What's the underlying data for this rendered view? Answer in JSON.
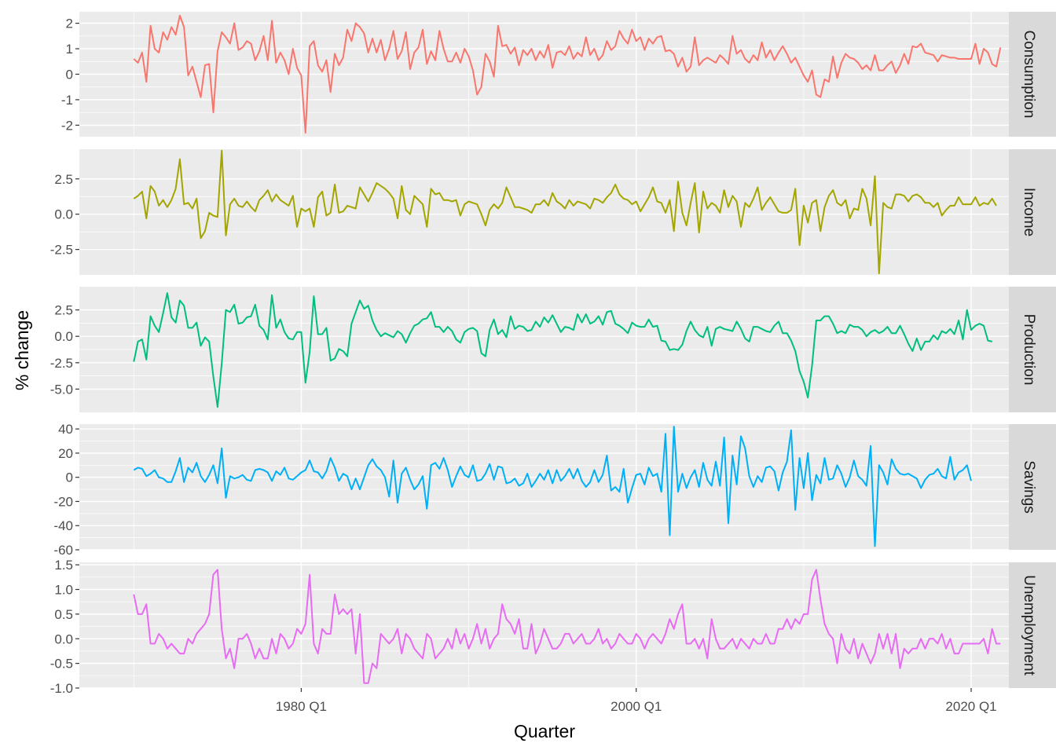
{
  "chart_data": {
    "type": "line",
    "xlabel": "Quarter",
    "ylabel": "% change",
    "x_ticks": [
      {
        "label": "1980 Q1",
        "value": 1980.0
      },
      {
        "label": "2000 Q1",
        "value": 2000.0
      },
      {
        "label": "2020 Q1",
        "value": 2020.0
      }
    ],
    "x_start": 1970.0,
    "x_step": 0.25,
    "xlim": [
      1966.75,
      2022.25
    ],
    "grid": true,
    "facets": [
      {
        "name": "Consumption",
        "color": "#F8766D",
        "ylim": [
          -2.45,
          2.45
        ],
        "ticks": [
          {
            "value": 2,
            "label": "2"
          },
          {
            "value": 1,
            "label": "1"
          },
          {
            "value": 0,
            "label": "0"
          },
          {
            "value": -1,
            "label": "-1"
          },
          {
            "value": -2,
            "label": "-2"
          }
        ],
        "values": [
          0.6,
          0.45,
          0.85,
          -0.3,
          1.9,
          1.0,
          0.85,
          1.65,
          1.35,
          1.85,
          1.55,
          2.3,
          1.85,
          -0.05,
          0.3,
          -0.3,
          -0.9,
          0.35,
          0.4,
          -1.5,
          0.9,
          1.65,
          1.45,
          1.2,
          2.0,
          0.95,
          1.05,
          1.3,
          1.2,
          0.55,
          0.9,
          1.5,
          0.55,
          2.1,
          0.45,
          0.85,
          0.55,
          0.0,
          1.0,
          0.25,
          -0.05,
          -2.3,
          1.1,
          1.3,
          0.35,
          0.1,
          0.55,
          -0.7,
          0.8,
          0.35,
          0.65,
          1.75,
          1.3,
          2.0,
          1.85,
          1.6,
          0.85,
          1.4,
          0.85,
          1.35,
          0.55,
          1.0,
          1.7,
          0.6,
          0.9,
          1.65,
          0.2,
          0.85,
          1.05,
          1.75,
          0.4,
          0.9,
          0.55,
          1.7,
          1.0,
          0.5,
          0.5,
          0.85,
          0.45,
          1.0,
          0.7,
          0.15,
          -0.8,
          -0.5,
          0.8,
          0.5,
          -0.1,
          1.9,
          1.1,
          1.15,
          0.8,
          1.05,
          0.35,
          0.95,
          0.75,
          1.0,
          0.55,
          0.9,
          0.65,
          1.15,
          0.25,
          0.85,
          0.9,
          0.75,
          1.1,
          0.6,
          0.85,
          0.7,
          1.45,
          0.75,
          1.0,
          0.55,
          0.75,
          1.3,
          0.95,
          1.1,
          1.7,
          1.4,
          1.2,
          1.75,
          1.3,
          1.45,
          0.95,
          1.4,
          1.2,
          1.45,
          1.5,
          0.9,
          0.95,
          0.8,
          0.3,
          0.65,
          0.1,
          0.3,
          1.45,
          0.35,
          0.55,
          0.65,
          0.55,
          0.45,
          0.75,
          0.6,
          0.4,
          1.5,
          0.8,
          0.95,
          0.6,
          0.45,
          0.75,
          0.55,
          1.25,
          0.65,
          0.95,
          0.55,
          0.85,
          1.1,
          0.8,
          0.45,
          0.65,
          0.3,
          -0.05,
          -0.3,
          0.15,
          -0.8,
          -0.9,
          -0.2,
          -0.3,
          0.7,
          -0.15,
          0.45,
          0.8,
          0.65,
          0.6,
          0.45,
          0.2,
          0.35,
          0.15,
          0.75,
          0.15,
          0.15,
          0.35,
          0.5,
          0.05,
          0.35,
          0.8,
          0.4,
          1.1,
          1.05,
          1.2,
          0.85,
          0.8,
          0.75,
          0.5,
          0.75,
          0.7,
          0.65,
          0.65,
          0.6,
          0.6,
          0.6,
          0.6,
          1.2,
          0.4,
          1.0,
          0.85,
          0.4,
          0.3,
          1.05
        ]
      },
      {
        "name": "Income",
        "color": "#A3A500",
        "ylim": [
          -4.3,
          4.6
        ],
        "ticks": [
          {
            "value": 2.5,
            "label": "2.5"
          },
          {
            "value": 0,
            "label": "0.0"
          },
          {
            "value": -2.5,
            "label": "-2.5"
          }
        ],
        "values": [
          1.1,
          1.3,
          1.6,
          -0.3,
          2.0,
          1.6,
          0.6,
          1.0,
          0.5,
          1.0,
          1.8,
          3.9,
          0.7,
          0.8,
          0.4,
          1.1,
          -1.7,
          -1.2,
          0.1,
          -0.1,
          -0.2,
          4.5,
          -1.5,
          0.7,
          1.1,
          0.6,
          0.5,
          0.9,
          0.5,
          0.2,
          1.0,
          1.3,
          1.7,
          0.9,
          1.4,
          1.0,
          0.8,
          0.6,
          1.3,
          -0.9,
          0.4,
          0.2,
          0.4,
          -0.9,
          1.2,
          1.6,
          -0.1,
          0.1,
          2.1,
          0.1,
          0.2,
          0.6,
          0.5,
          0.4,
          1.9,
          1.4,
          0.9,
          1.5,
          2.2,
          2.0,
          1.8,
          1.5,
          1.1,
          -0.3,
          2.0,
          0.3,
          0.0,
          1.3,
          1.0,
          0.7,
          -0.9,
          1.8,
          1.4,
          1.5,
          1.0,
          1.0,
          0.9,
          1.0,
          -0.1,
          0.7,
          0.9,
          0.8,
          0.7,
          0.0,
          -0.8,
          0.3,
          0.7,
          0.4,
          0.8,
          1.9,
          1.2,
          0.5,
          0.5,
          0.4,
          0.3,
          0.1,
          0.7,
          0.7,
          1.0,
          0.6,
          1.5,
          0.9,
          0.7,
          0.4,
          1.0,
          0.6,
          0.9,
          0.8,
          0.7,
          0.4,
          1.1,
          1.0,
          0.8,
          1.2,
          1.5,
          2.1,
          1.4,
          1.1,
          1.0,
          0.7,
          0.9,
          0.2,
          0.7,
          1.2,
          1.9,
          0.9,
          0.8,
          0.1,
          1.0,
          -1.2,
          2.3,
          0.1,
          -0.8,
          0.8,
          2.2,
          -1.3,
          1.6,
          0.4,
          0.8,
          0.6,
          0.1,
          1.7,
          0.5,
          1.3,
          0.9,
          -0.9,
          0.8,
          0.5,
          1.1,
          1.9,
          0.3,
          0.8,
          1.2,
          0.7,
          0.2,
          0.1,
          0.1,
          0.3,
          1.8,
          -2.2,
          0.6,
          -0.6,
          0.8,
          1.0,
          -1.2,
          0.5,
          1.3,
          1.7,
          0.8,
          0.6,
          1.0,
          -0.3,
          0.4,
          0.3,
          1.8,
          1.1,
          -0.8,
          2.7,
          -4.2,
          0.8,
          0.5,
          0.4,
          1.4,
          1.4,
          1.3,
          0.9,
          1.3,
          1.4,
          1.2,
          0.8,
          0.8,
          0.5,
          0.8,
          -0.1,
          0.3,
          0.6,
          0.6,
          1.2,
          0.7,
          0.7,
          0.7,
          1.2,
          0.6,
          0.8,
          0.7,
          1.1,
          0.6
        ]
      },
      {
        "name": "Production",
        "color": "#00BF7D",
        "ylim": [
          -7.2,
          4.7
        ],
        "ticks": [
          {
            "value": 2.5,
            "label": "2.5"
          },
          {
            "value": 0,
            "label": "0.0"
          },
          {
            "value": -2.5,
            "label": "-2.5"
          },
          {
            "value": -5,
            "label": "-5.0"
          }
        ],
        "values": [
          -2.4,
          -0.5,
          -0.3,
          -2.2,
          1.9,
          1.0,
          0.4,
          2.2,
          4.1,
          1.8,
          1.3,
          3.4,
          2.9,
          0.8,
          0.8,
          1.3,
          -0.9,
          -0.1,
          -0.5,
          -3.8,
          -6.7,
          -2.6,
          2.5,
          2.3,
          3.0,
          1.2,
          1.3,
          1.8,
          1.9,
          3.0,
          1.0,
          0.6,
          -0.3,
          3.9,
          0.8,
          1.6,
          0.4,
          -0.2,
          -0.3,
          0.4,
          0.4,
          -4.4,
          -1.5,
          3.8,
          0.2,
          0.2,
          0.8,
          -2.3,
          -2.1,
          -1.2,
          -1.4,
          -1.9,
          1.2,
          2.3,
          3.4,
          2.6,
          2.9,
          1.5,
          0.6,
          0.0,
          0.3,
          0.1,
          -0.1,
          0.5,
          0.2,
          -0.6,
          0.3,
          1.0,
          1.2,
          1.6,
          1.7,
          2.3,
          0.9,
          0.9,
          0.4,
          0.9,
          0.5,
          -0.3,
          -0.6,
          0.4,
          0.7,
          0.8,
          0.5,
          -1.6,
          -1.9,
          0.6,
          1.6,
          0.2,
          0.6,
          -0.1,
          1.9,
          0.7,
          1.0,
          0.9,
          0.5,
          0.6,
          1.4,
          0.9,
          1.8,
          1.3,
          2.0,
          1.2,
          0.4,
          0.9,
          0.8,
          0.6,
          2.1,
          1.3,
          2.1,
          1.2,
          1.4,
          1.9,
          1.1,
          2.3,
          2.4,
          1.2,
          1.0,
          0.7,
          0.3,
          1.3,
          1.0,
          0.9,
          0.9,
          1.6,
          0.9,
          1.0,
          -0.4,
          -0.5,
          -1.3,
          -1.2,
          -1.3,
          -0.8,
          0.5,
          1.4,
          0.6,
          0.1,
          -0.1,
          0.9,
          -0.9,
          0.7,
          0.9,
          0.7,
          0.6,
          0.5,
          1.4,
          0.7,
          -0.2,
          -0.5,
          0.9,
          0.9,
          0.7,
          0.5,
          0.4,
          1.0,
          1.4,
          0.3,
          0.3,
          -0.4,
          -1.4,
          -3.3,
          -4.3,
          -5.8,
          -2.8,
          1.5,
          1.5,
          1.9,
          1.9,
          1.2,
          0.3,
          0.5,
          0.3,
          1.1,
          0.9,
          0.9,
          0.6,
          0.0,
          0.4,
          0.6,
          0.3,
          0.5,
          0.9,
          0.3,
          0.3,
          1.0,
          0.2,
          -0.7,
          -1.4,
          -0.2,
          -1.3,
          -0.5,
          -0.5,
          0.1,
          -0.3,
          0.5,
          0.3,
          0.7,
          0.2,
          1.5,
          -0.3,
          2.5,
          0.6,
          1.0,
          1.2,
          1.0,
          -0.4,
          -0.5
        ]
      },
      {
        "name": "Savings",
        "color": "#00B0F6",
        "ylim": [
          -60,
          44
        ],
        "ticks": [
          {
            "value": 40,
            "label": "40"
          },
          {
            "value": 20,
            "label": "20"
          },
          {
            "value": 0,
            "label": "0"
          },
          {
            "value": -20,
            "label": "-20"
          },
          {
            "value": -40,
            "label": "-40"
          },
          {
            "value": -60,
            "label": "-60"
          }
        ],
        "values": [
          6,
          8,
          7,
          1,
          3,
          6,
          0,
          -1,
          -4,
          -4,
          5,
          16,
          -4,
          8,
          4,
          12,
          1,
          -4,
          2,
          10,
          -5,
          24,
          -17,
          1,
          -1,
          0,
          2,
          -2,
          -3,
          6,
          7,
          6,
          4,
          -3,
          5,
          2,
          8,
          -1,
          -2,
          1,
          4,
          6,
          14,
          5,
          4,
          -1,
          5,
          16,
          8,
          -3,
          3,
          1,
          -10,
          -1,
          -10,
          0,
          10,
          15,
          9,
          6,
          0,
          -16,
          14,
          -21,
          3,
          8,
          -2,
          -10,
          -6,
          1,
          -26,
          10,
          12,
          7,
          16,
          6,
          -8,
          1,
          9,
          2,
          0,
          10,
          -3,
          -2,
          3,
          11,
          -2,
          9,
          8,
          -5,
          -4,
          -1,
          -7,
          -5,
          3,
          -8,
          -3,
          3,
          -2,
          6,
          -5,
          6,
          -3,
          1,
          7,
          -1,
          7,
          -3,
          -8,
          -4,
          6,
          -4,
          2,
          18,
          -11,
          -8,
          -12,
          7,
          -21,
          -9,
          2,
          3,
          -6,
          8,
          1,
          3,
          -12,
          36,
          -48,
          42,
          -12,
          3,
          -9,
          0,
          6,
          -8,
          12,
          -2,
          -7,
          13,
          -7,
          33,
          -38,
          18,
          -6,
          34,
          24,
          1,
          -8,
          1,
          -4,
          8,
          9,
          5,
          -11,
          4,
          13,
          39,
          -27,
          16,
          -9,
          20,
          -19,
          2,
          -5,
          16,
          -2,
          -1,
          10,
          3,
          -8,
          0,
          14,
          1,
          -2,
          -7,
          26,
          -57,
          10,
          4,
          -6,
          15,
          7,
          3,
          2,
          3,
          1,
          -1,
          -9,
          -2,
          2,
          3,
          7,
          1,
          -1,
          17,
          -2,
          4,
          6,
          10,
          -3
        ]
      },
      {
        "name": "Unemployment",
        "color": "#E76BF3",
        "ylim": [
          -1.0,
          1.55
        ],
        "ticks": [
          {
            "value": 1.5,
            "label": "1.5"
          },
          {
            "value": 1.0,
            "label": "1.0"
          },
          {
            "value": 0.5,
            "label": "0.5"
          },
          {
            "value": 0,
            "label": "0.0"
          },
          {
            "value": -0.5,
            "label": "-0.5"
          },
          {
            "value": -1.0,
            "label": "-1.0"
          }
        ],
        "values": [
          0.9,
          0.5,
          0.5,
          0.7,
          -0.1,
          -0.1,
          0.1,
          0.0,
          -0.2,
          -0.1,
          -0.2,
          -0.3,
          -0.3,
          0.0,
          -0.1,
          0.1,
          0.2,
          0.3,
          0.5,
          1.3,
          1.4,
          0.2,
          -0.4,
          -0.2,
          -0.6,
          0.0,
          0.0,
          0.1,
          -0.1,
          -0.4,
          -0.2,
          -0.4,
          -0.4,
          0.0,
          -0.3,
          0.1,
          0.0,
          -0.2,
          -0.1,
          0.2,
          0.1,
          0.3,
          1.3,
          -0.1,
          -0.3,
          0.2,
          0.1,
          0.1,
          0.9,
          0.5,
          0.6,
          0.5,
          0.6,
          -0.3,
          0.5,
          -0.9,
          -0.9,
          -0.5,
          -0.6,
          0.1,
          0.0,
          -0.1,
          0.0,
          0.2,
          -0.3,
          0.1,
          0.0,
          -0.2,
          -0.3,
          -0.4,
          0.1,
          0.0,
          -0.4,
          -0.3,
          -0.2,
          0.0,
          -0.2,
          0.2,
          -0.1,
          0.1,
          -0.2,
          0.0,
          0.3,
          -0.1,
          0.2,
          -0.2,
          0.0,
          0.1,
          0.7,
          0.4,
          0.3,
          0.1,
          0.4,
          -0.2,
          -0.2,
          0.3,
          -0.3,
          -0.1,
          0.2,
          0.0,
          -0.2,
          -0.2,
          -0.1,
          0.1,
          0.1,
          -0.1,
          0.0,
          0.1,
          -0.1,
          -0.1,
          0.0,
          0.2,
          -0.1,
          0.0,
          -0.2,
          -0.1,
          0.1,
          0.0,
          -0.1,
          -0.1,
          0.1,
          0.0,
          -0.2,
          0.0,
          0.1,
          0.0,
          -0.1,
          0.1,
          0.4,
          0.2,
          0.5,
          0.7,
          -0.1,
          -0.1,
          0.0,
          -0.2,
          0.0,
          -0.4,
          0.4,
          0.0,
          -0.2,
          -0.2,
          -0.1,
          0.0,
          -0.2,
          0.0,
          -0.1,
          -0.2,
          0.0,
          -0.1,
          -0.1,
          0.1,
          -0.1,
          -0.1,
          0.2,
          0.2,
          0.4,
          0.2,
          0.4,
          0.3,
          0.5,
          0.5,
          1.2,
          1.4,
          0.8,
          0.3,
          0.1,
          0.0,
          -0.5,
          0.1,
          -0.2,
          -0.3,
          0.0,
          -0.4,
          -0.1,
          -0.3,
          -0.5,
          -0.3,
          0.1,
          -0.2,
          0.1,
          -0.3,
          0.1,
          -0.6,
          -0.2,
          -0.3,
          -0.2,
          -0.2,
          0.0,
          -0.2,
          0.0,
          0.0,
          -0.1,
          0.1,
          -0.2,
          0.0,
          -0.3,
          -0.3,
          -0.1,
          -0.1,
          -0.1,
          -0.1,
          -0.1,
          0.0,
          -0.3,
          0.2,
          -0.1,
          -0.1
        ]
      }
    ]
  }
}
